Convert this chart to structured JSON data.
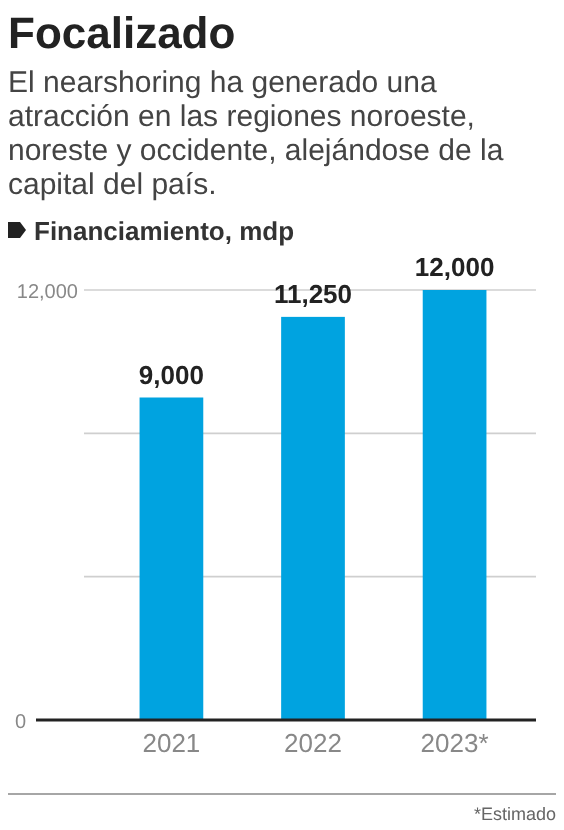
{
  "chart_data": {
    "type": "bar",
    "title": "Focalizado",
    "subtitle": "El nearshoring ha generado una atracción en las regiones noroeste, noreste y occidente, alejándose de la capital del país.",
    "ylabel": "Financiamiento, mdp",
    "categories": [
      "2021",
      "2022",
      "2023*"
    ],
    "values": [
      9000,
      11250,
      12000
    ],
    "color": "#00a3e0",
    "value_labels": [
      "9,000",
      "11,250",
      "12,000"
    ],
    "ylim": [
      0,
      12000
    ],
    "yticks": [
      0,
      {
        "value": 4000,
        "label": null
      },
      {
        "value": 8000,
        "label": null
      },
      {
        "value": 12000,
        "label": "12,000"
      }
    ],
    "grid": "y",
    "annotations": [
      "*Estimado"
    ]
  }
}
